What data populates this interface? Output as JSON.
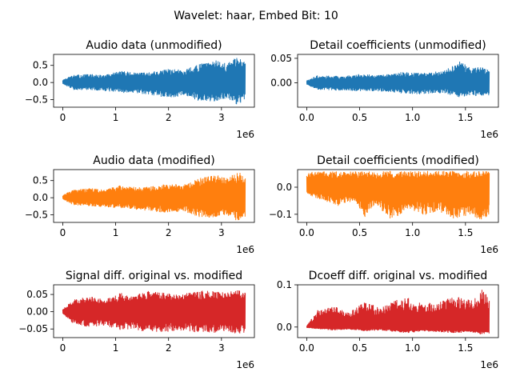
{
  "suptitle": "Wavelet: haar, Embed Bit: 10",
  "colors": {
    "blue": "#1f77b4",
    "orange": "#ff7f0e",
    "red": "#d62728",
    "axis": "#000000",
    "background": "#ffffff"
  },
  "chart_data": [
    {
      "type": "line",
      "title": "Audio data (unmodified)",
      "series": [
        {
          "color": "#1f77b4"
        }
      ],
      "x_range": [
        0,
        3450000
      ],
      "xlim": [
        -172500,
        3622500
      ],
      "ylim": [
        -0.72,
        0.82
      ],
      "xticks": [
        0,
        1000000,
        2000000,
        3000000
      ],
      "xtick_labels": [
        "0",
        "1",
        "2",
        "3"
      ],
      "yticks": [
        -0.5,
        0,
        0.5
      ],
      "ytick_labels": [
        "−0.5",
        "0.0",
        "0.5"
      ],
      "x_offset_label": "1e6",
      "envelope": [
        {
          "x": 0,
          "upper": 0.08,
          "lower": -0.05
        },
        {
          "x": 200000,
          "upper": 0.22,
          "lower": -0.22
        },
        {
          "x": 500000,
          "upper": 0.25,
          "lower": -0.22
        },
        {
          "x": 800000,
          "upper": 0.22,
          "lower": -0.25
        },
        {
          "x": 1100000,
          "upper": 0.35,
          "lower": -0.3
        },
        {
          "x": 1400000,
          "upper": 0.28,
          "lower": -0.32
        },
        {
          "x": 1700000,
          "upper": 0.32,
          "lower": -0.38
        },
        {
          "x": 2000000,
          "upper": 0.4,
          "lower": -0.45
        },
        {
          "x": 2300000,
          "upper": 0.38,
          "lower": -0.4
        },
        {
          "x": 2600000,
          "upper": 0.55,
          "lower": -0.55
        },
        {
          "x": 2900000,
          "upper": 0.65,
          "lower": -0.55
        },
        {
          "x": 3100000,
          "upper": 0.55,
          "lower": -0.48
        },
        {
          "x": 3300000,
          "upper": 0.75,
          "lower": -0.65
        },
        {
          "x": 3450000,
          "upper": 0.6,
          "lower": -0.55
        }
      ]
    },
    {
      "type": "line",
      "title": "Detail coefficients (unmodified)",
      "series": [
        {
          "color": "#1f77b4"
        }
      ],
      "x_range": [
        0,
        1725000
      ],
      "xlim": [
        -86250,
        1811250
      ],
      "ylim": [
        -0.05,
        0.058
      ],
      "xticks": [
        0,
        500000,
        1000000,
        1500000
      ],
      "xtick_labels": [
        "0.0",
        "0.5",
        "1.0",
        "1.5"
      ],
      "yticks": [
        0,
        0.05
      ],
      "ytick_labels": [
        "0.00",
        "0.05"
      ],
      "x_offset_label": "1e6",
      "envelope": [
        {
          "x": 0,
          "upper": 0.005,
          "lower": -0.004
        },
        {
          "x": 100000,
          "upper": 0.015,
          "lower": -0.015
        },
        {
          "x": 300000,
          "upper": 0.014,
          "lower": -0.016
        },
        {
          "x": 500000,
          "upper": 0.018,
          "lower": -0.017
        },
        {
          "x": 700000,
          "upper": 0.016,
          "lower": -0.018
        },
        {
          "x": 900000,
          "upper": 0.022,
          "lower": -0.022
        },
        {
          "x": 1100000,
          "upper": 0.02,
          "lower": -0.024
        },
        {
          "x": 1300000,
          "upper": 0.025,
          "lower": -0.022
        },
        {
          "x": 1450000,
          "upper": 0.045,
          "lower": -0.03
        },
        {
          "x": 1550000,
          "upper": 0.03,
          "lower": -0.025
        },
        {
          "x": 1650000,
          "upper": 0.035,
          "lower": -0.03
        },
        {
          "x": 1725000,
          "upper": 0.025,
          "lower": -0.028
        }
      ]
    },
    {
      "type": "line",
      "title": "Audio data (modified)",
      "series": [
        {
          "color": "#ff7f0e"
        }
      ],
      "x_range": [
        0,
        3450000
      ],
      "xlim": [
        -172500,
        3622500
      ],
      "ylim": [
        -0.72,
        0.82
      ],
      "xticks": [
        0,
        1000000,
        2000000,
        3000000
      ],
      "xtick_labels": [
        "0",
        "1",
        "2",
        "3"
      ],
      "yticks": [
        -0.5,
        0,
        0.5
      ],
      "ytick_labels": [
        "−0.5",
        "0.0",
        "0.5"
      ],
      "x_offset_label": "1e6",
      "envelope": [
        {
          "x": 0,
          "upper": 0.08,
          "lower": -0.05
        },
        {
          "x": 200000,
          "upper": 0.25,
          "lower": -0.22
        },
        {
          "x": 500000,
          "upper": 0.28,
          "lower": -0.25
        },
        {
          "x": 800000,
          "upper": 0.24,
          "lower": -0.28
        },
        {
          "x": 1100000,
          "upper": 0.38,
          "lower": -0.32
        },
        {
          "x": 1400000,
          "upper": 0.3,
          "lower": -0.35
        },
        {
          "x": 1700000,
          "upper": 0.34,
          "lower": -0.4
        },
        {
          "x": 2000000,
          "upper": 0.42,
          "lower": -0.45
        },
        {
          "x": 2300000,
          "upper": 0.4,
          "lower": -0.42
        },
        {
          "x": 2600000,
          "upper": 0.58,
          "lower": -0.58
        },
        {
          "x": 2900000,
          "upper": 0.68,
          "lower": -0.58
        },
        {
          "x": 3100000,
          "upper": 0.58,
          "lower": -0.5
        },
        {
          "x": 3300000,
          "upper": 0.78,
          "lower": -0.68
        },
        {
          "x": 3450000,
          "upper": 0.62,
          "lower": -0.58
        }
      ]
    },
    {
      "type": "line",
      "title": "Detail coefficients (modified)",
      "series": [
        {
          "color": "#ff7f0e"
        }
      ],
      "x_range": [
        0,
        1725000
      ],
      "xlim": [
        -86250,
        1811250
      ],
      "ylim": [
        -0.13,
        0.065
      ],
      "xticks": [
        0,
        500000,
        1000000,
        1500000
      ],
      "xtick_labels": [
        "0.0",
        "0.5",
        "1.0",
        "1.5"
      ],
      "yticks": [
        -0.1,
        0
      ],
      "ytick_labels": [
        "−0.1",
        "0.0"
      ],
      "x_offset_label": "1e6",
      "envelope": [
        {
          "x": 0,
          "upper": 0.055,
          "lower": -0.025
        },
        {
          "x": 150000,
          "upper": 0.06,
          "lower": -0.05
        },
        {
          "x": 300000,
          "upper": 0.058,
          "lower": -0.07
        },
        {
          "x": 450000,
          "upper": 0.06,
          "lower": -0.05
        },
        {
          "x": 550000,
          "upper": 0.06,
          "lower": -0.11
        },
        {
          "x": 650000,
          "upper": 0.058,
          "lower": -0.06
        },
        {
          "x": 800000,
          "upper": 0.06,
          "lower": -0.125
        },
        {
          "x": 950000,
          "upper": 0.06,
          "lower": -0.08
        },
        {
          "x": 1100000,
          "upper": 0.06,
          "lower": -0.105
        },
        {
          "x": 1250000,
          "upper": 0.06,
          "lower": -0.09
        },
        {
          "x": 1400000,
          "upper": 0.06,
          "lower": -0.12
        },
        {
          "x": 1550000,
          "upper": 0.06,
          "lower": -0.1
        },
        {
          "x": 1650000,
          "upper": 0.06,
          "lower": -0.125
        },
        {
          "x": 1725000,
          "upper": 0.058,
          "lower": -0.1
        }
      ]
    },
    {
      "type": "line",
      "title": "Signal diff. original vs. modified",
      "series": [
        {
          "color": "#d62728"
        }
      ],
      "x_range": [
        0,
        3450000
      ],
      "xlim": [
        -172500,
        3622500
      ],
      "ylim": [
        -0.075,
        0.078
      ],
      "xticks": [
        0,
        1000000,
        2000000,
        3000000
      ],
      "xtick_labels": [
        "0",
        "1",
        "2",
        "3"
      ],
      "yticks": [
        -0.05,
        0,
        0.05
      ],
      "ytick_labels": [
        "−0.05",
        "0.00",
        "0.05"
      ],
      "x_offset_label": "1e6",
      "envelope": [
        {
          "x": 0,
          "upper": 0.008,
          "lower": -0.006
        },
        {
          "x": 200000,
          "upper": 0.035,
          "lower": -0.035
        },
        {
          "x": 500000,
          "upper": 0.045,
          "lower": -0.045
        },
        {
          "x": 800000,
          "upper": 0.035,
          "lower": -0.04
        },
        {
          "x": 1100000,
          "upper": 0.055,
          "lower": -0.055
        },
        {
          "x": 1300000,
          "upper": 0.045,
          "lower": -0.05
        },
        {
          "x": 1600000,
          "upper": 0.06,
          "lower": -0.06
        },
        {
          "x": 1900000,
          "upper": 0.055,
          "lower": -0.06
        },
        {
          "x": 2200000,
          "upper": 0.05,
          "lower": -0.055
        },
        {
          "x": 2500000,
          "upper": 0.06,
          "lower": -0.06
        },
        {
          "x": 2800000,
          "upper": 0.062,
          "lower": -0.062
        },
        {
          "x": 3100000,
          "upper": 0.055,
          "lower": -0.058
        },
        {
          "x": 3300000,
          "upper": 0.065,
          "lower": -0.065
        },
        {
          "x": 3450000,
          "upper": 0.06,
          "lower": -0.06
        }
      ]
    },
    {
      "type": "line",
      "title": "Dcoeff diff. original vs. modified",
      "series": [
        {
          "color": "#d62728"
        }
      ],
      "x_range": [
        0,
        1725000
      ],
      "xlim": [
        -86250,
        1811250
      ],
      "ylim": [
        -0.025,
        0.1
      ],
      "xticks": [
        0,
        500000,
        1000000,
        1500000
      ],
      "xtick_labels": [
        "0.0",
        "0.5",
        "1.0",
        "1.5"
      ],
      "yticks": [
        0,
        0.1
      ],
      "ytick_labels": [
        "0.0",
        "0.1"
      ],
      "x_offset_label": "1e6",
      "envelope": [
        {
          "x": 0,
          "upper": 0.003,
          "lower": -0.002
        },
        {
          "x": 100000,
          "upper": 0.04,
          "lower": -0.005
        },
        {
          "x": 250000,
          "upper": 0.05,
          "lower": -0.008
        },
        {
          "x": 400000,
          "upper": 0.035,
          "lower": -0.006
        },
        {
          "x": 550000,
          "upper": 0.06,
          "lower": -0.01
        },
        {
          "x": 700000,
          "upper": 0.045,
          "lower": -0.008
        },
        {
          "x": 850000,
          "upper": 0.065,
          "lower": -0.012
        },
        {
          "x": 950000,
          "upper": 0.07,
          "lower": -0.015
        },
        {
          "x": 1100000,
          "upper": 0.055,
          "lower": -0.01
        },
        {
          "x": 1250000,
          "upper": 0.06,
          "lower": -0.012
        },
        {
          "x": 1400000,
          "upper": 0.075,
          "lower": -0.015
        },
        {
          "x": 1550000,
          "upper": 0.065,
          "lower": -0.012
        },
        {
          "x": 1650000,
          "upper": 0.09,
          "lower": -0.018
        },
        {
          "x": 1725000,
          "upper": 0.07,
          "lower": -0.015
        }
      ]
    }
  ]
}
